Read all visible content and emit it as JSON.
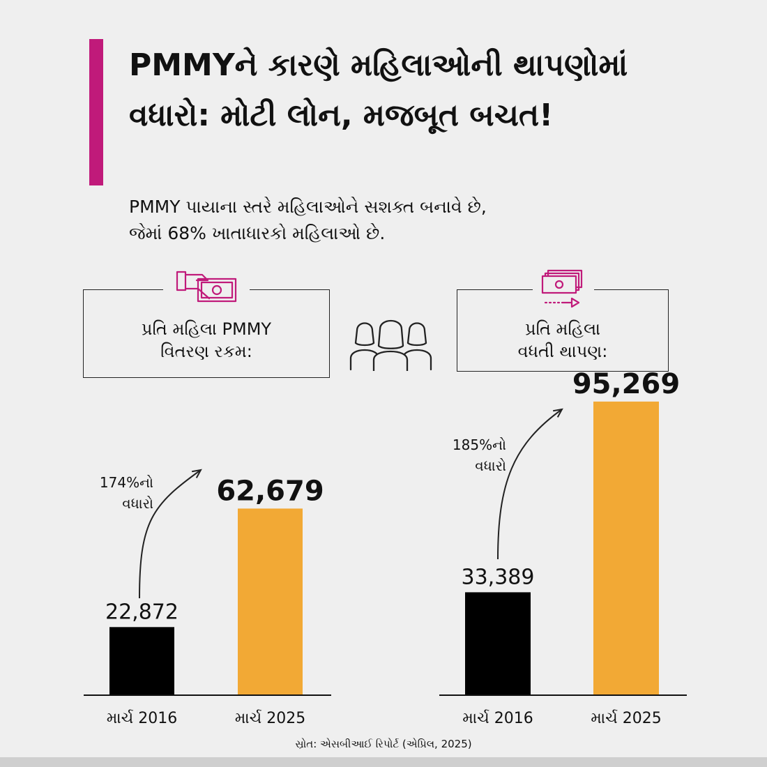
{
  "title": "PMMYને કારણે મહિલાઓની થાપણોમાં વધારો: મોટી લોન, મજબૂત બચત!",
  "subtitle_line1": "PMMY પાયાના સ્તરે મહિલાઓને સશક્ત બનાવે છે,",
  "subtitle_line2": "જેમાં 68% ખાતાધારકો મહિલાઓ છે.",
  "colors": {
    "accent": "#c01a7a",
    "bar_2016": "#000000",
    "bar_2025": "#f2a935"
  },
  "icons": {
    "left_card": "hand-cash-icon",
    "right_card": "cash-transfer-icon",
    "center": "women-group-icon"
  },
  "cards": {
    "left": {
      "line1": "પ્રતિ મહિલા PMMY",
      "line2": "વિતરણ રકમ:"
    },
    "right": {
      "line1": "પ્રતિ મહિલા",
      "line2": "વધતી થાપણ:"
    }
  },
  "chart_data": [
    {
      "type": "bar",
      "categories": [
        "માર્ચ 2016",
        "માર્ચ 2025"
      ],
      "values": [
        22872,
        62679
      ],
      "value_labels": [
        "22,872",
        "62,679"
      ],
      "ylim": [
        0,
        100000
      ],
      "annotation_line1": "174%નો",
      "annotation_line2": "વધારો"
    },
    {
      "type": "bar",
      "categories": [
        "માર્ચ 2016",
        "માર્ચ 2025"
      ],
      "values": [
        33389,
        95269
      ],
      "value_labels": [
        "33,389",
        "95,269"
      ],
      "ylim": [
        0,
        100000
      ],
      "annotation_line1": "185%નો",
      "annotation_line2": "વધારો"
    }
  ],
  "source": "સ્રોત: એસબીઆઈ રિપોર્ટ (એપ્રિલ, 2025)"
}
